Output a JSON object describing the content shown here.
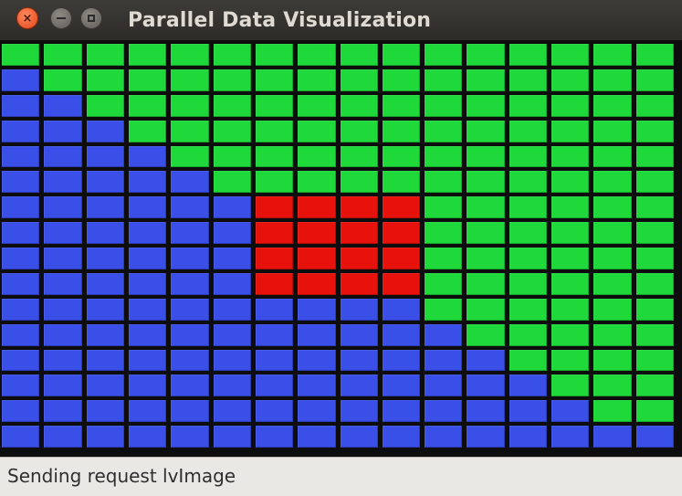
{
  "window": {
    "title": "Parallel Data Visualization",
    "controls": {
      "close_glyph": "×",
      "close_icon": "close-icon",
      "minimize_icon": "minimize-icon",
      "maximize_icon": "maximize-icon"
    }
  },
  "grid": {
    "columns": 16,
    "rows": 16,
    "colors": {
      "blue": "#3a4ee8",
      "green": "#1fd83a",
      "red": "#e8120c"
    },
    "column_blue_counts": [
      15,
      14,
      13,
      12,
      11,
      10,
      6,
      6,
      6,
      6,
      5,
      4,
      3,
      2,
      1,
      1
    ],
    "red_block": {
      "columns": [
        6,
        7,
        8,
        9
      ],
      "rows": [
        6,
        7,
        8,
        9
      ]
    }
  },
  "status": {
    "text": "Sending request lvImage"
  }
}
